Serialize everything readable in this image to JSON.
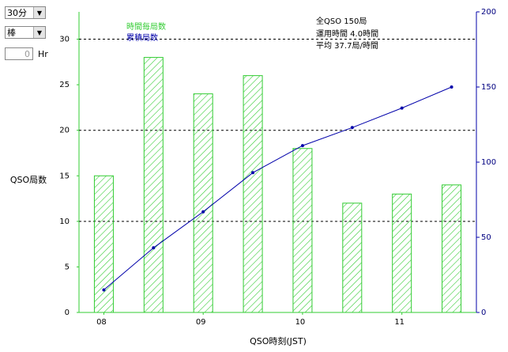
{
  "controls": {
    "interval": "30分",
    "style": "棒",
    "hours": "0",
    "hours_unit": "Hr"
  },
  "chart_data": {
    "type": "bar",
    "ylabel": "QSO局数",
    "xlabel": "QSO時刻(JST)",
    "annotations": [
      "全QSO 150局",
      "運用時間 4.0時間",
      "平均 37.7局/時間"
    ],
    "categories": [
      "08",
      null,
      "09",
      null,
      "10",
      null,
      "11",
      null
    ],
    "series": [
      {
        "name": "時間毎局数",
        "color": "#33cc33",
        "values": [
          15,
          28,
          24,
          26,
          18,
          12,
          13,
          14
        ]
      },
      {
        "name": "累積局数",
        "color": "#0000aa",
        "axis": "y2",
        "values": [
          15,
          43,
          67,
          93,
          111,
          123,
          136,
          150
        ]
      }
    ],
    "ylim": [
      0,
      33
    ],
    "yticks": [
      0,
      5,
      10,
      15,
      20,
      25,
      30
    ],
    "y2lim": [
      0,
      200
    ],
    "y2ticks": [
      0,
      50,
      100,
      150,
      200
    ],
    "ygrid": [
      10,
      20,
      30
    ]
  }
}
